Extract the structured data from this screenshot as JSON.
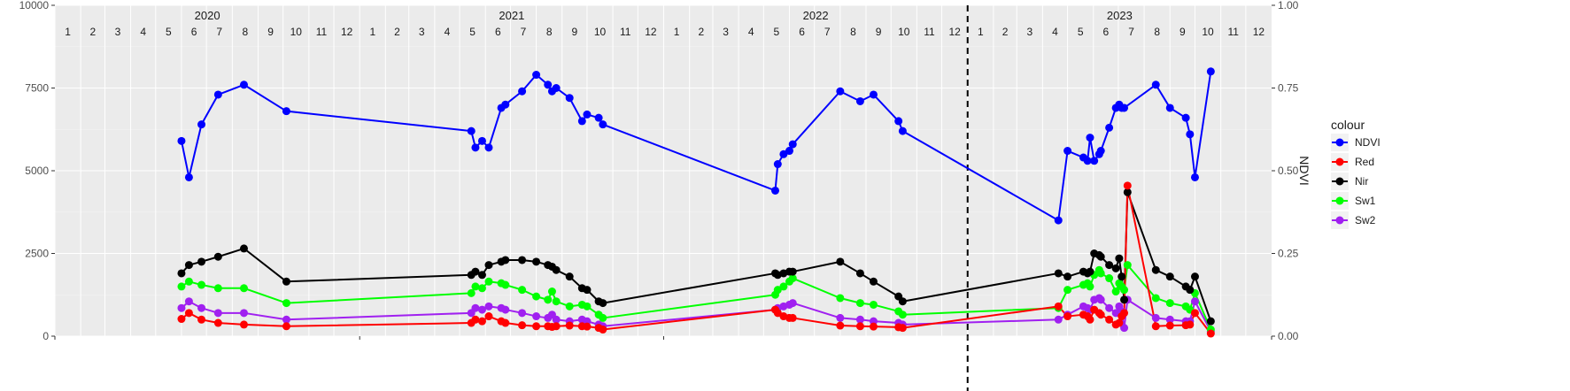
{
  "chart_data": {
    "type": "line",
    "x_range": [
      "2020-01-01",
      "2024-01-01"
    ],
    "ylim_left": [
      0,
      10000
    ],
    "ylim_right": [
      0,
      1.0
    ],
    "left_ticks": [
      0,
      2500,
      5000,
      7500,
      10000
    ],
    "left_tick_labels": [
      "0",
      "2500",
      "5000",
      "7500",
      "10000"
    ],
    "right_ticks": [
      0,
      0.25,
      0.5,
      0.75,
      1.0
    ],
    "right_tick_labels": [
      "0.00",
      "0.25",
      "0.50",
      "0.75",
      "1.00"
    ],
    "right_ylabel": "NDVI",
    "years": [
      "2020",
      "2021",
      "2022",
      "2023"
    ],
    "month_labels": [
      "1",
      "2",
      "3",
      "4",
      "5",
      "6",
      "7",
      "8",
      "9",
      "10",
      "11",
      "12"
    ],
    "vline_date": "2023-01-01",
    "vline_style": "dashed",
    "grid": true,
    "legend": {
      "title": "colour",
      "position": "right",
      "entries": [
        "NDVI",
        "Red",
        "Nir",
        "Sw1",
        "Sw2"
      ]
    },
    "series": [
      {
        "name": "NDVI",
        "color": "#0000ff",
        "axis": "right",
        "points": [
          [
            "2020-06-01",
            0.59
          ],
          [
            "2020-06-10",
            0.48
          ],
          [
            "2020-06-25",
            0.64
          ],
          [
            "2020-07-15",
            0.73
          ],
          [
            "2020-08-15",
            0.76
          ],
          [
            "2020-10-05",
            0.68
          ],
          [
            "2021-05-15",
            0.62
          ],
          [
            "2021-05-20",
            0.57
          ],
          [
            "2021-05-28",
            0.59
          ],
          [
            "2021-06-05",
            0.57
          ],
          [
            "2021-06-20",
            0.69
          ],
          [
            "2021-06-25",
            0.7
          ],
          [
            "2021-07-15",
            0.74
          ],
          [
            "2021-08-01",
            0.79
          ],
          [
            "2021-08-15",
            0.76
          ],
          [
            "2021-08-20",
            0.74
          ],
          [
            "2021-08-25",
            0.75
          ],
          [
            "2021-09-10",
            0.72
          ],
          [
            "2021-09-25",
            0.65
          ],
          [
            "2021-10-01",
            0.67
          ],
          [
            "2021-10-15",
            0.66
          ],
          [
            "2021-10-20",
            0.64
          ],
          [
            "2022-05-15",
            0.44
          ],
          [
            "2022-05-18",
            0.52
          ],
          [
            "2022-05-25",
            0.55
          ],
          [
            "2022-06-01",
            0.56
          ],
          [
            "2022-06-05",
            0.58
          ],
          [
            "2022-08-01",
            0.74
          ],
          [
            "2022-08-25",
            0.71
          ],
          [
            "2022-09-10",
            0.73
          ],
          [
            "2022-10-10",
            0.65
          ],
          [
            "2022-10-15",
            0.62
          ],
          [
            "2023-04-20",
            0.35
          ],
          [
            "2023-05-01",
            0.56
          ],
          [
            "2023-05-20",
            0.54
          ],
          [
            "2023-05-25",
            0.53
          ],
          [
            "2023-05-28",
            0.6
          ],
          [
            "2023-06-02",
            0.53
          ],
          [
            "2023-06-08",
            0.55
          ],
          [
            "2023-06-10",
            0.56
          ],
          [
            "2023-06-20",
            0.63
          ],
          [
            "2023-06-28",
            0.69
          ],
          [
            "2023-07-02",
            0.7
          ],
          [
            "2023-07-05",
            0.69
          ],
          [
            "2023-07-08",
            0.69
          ],
          [
            "2023-08-15",
            0.76
          ],
          [
            "2023-09-01",
            0.69
          ],
          [
            "2023-09-20",
            0.66
          ],
          [
            "2023-09-25",
            0.61
          ],
          [
            "2023-10-01",
            0.48
          ],
          [
            "2023-10-20",
            0.8
          ]
        ]
      },
      {
        "name": "Red",
        "color": "#ff0000",
        "axis": "left",
        "points": [
          [
            "2020-06-01",
            520
          ],
          [
            "2020-06-10",
            700
          ],
          [
            "2020-06-25",
            500
          ],
          [
            "2020-07-15",
            400
          ],
          [
            "2020-08-15",
            350
          ],
          [
            "2020-10-05",
            300
          ],
          [
            "2021-05-15",
            400
          ],
          [
            "2021-05-20",
            500
          ],
          [
            "2021-05-28",
            450
          ],
          [
            "2021-06-05",
            600
          ],
          [
            "2021-06-20",
            450
          ],
          [
            "2021-06-25",
            400
          ],
          [
            "2021-07-15",
            330
          ],
          [
            "2021-08-01",
            300
          ],
          [
            "2021-08-15",
            300
          ],
          [
            "2021-08-20",
            280
          ],
          [
            "2021-08-25",
            300
          ],
          [
            "2021-09-10",
            320
          ],
          [
            "2021-09-25",
            300
          ],
          [
            "2021-10-01",
            290
          ],
          [
            "2021-10-15",
            250
          ],
          [
            "2021-10-20",
            200
          ],
          [
            "2022-05-15",
            800
          ],
          [
            "2022-05-18",
            700
          ],
          [
            "2022-05-25",
            600
          ],
          [
            "2022-06-01",
            550
          ],
          [
            "2022-06-05",
            550
          ],
          [
            "2022-08-01",
            320
          ],
          [
            "2022-08-25",
            300
          ],
          [
            "2022-09-10",
            290
          ],
          [
            "2022-10-10",
            270
          ],
          [
            "2022-10-15",
            250
          ],
          [
            "2023-04-20",
            900
          ],
          [
            "2023-05-01",
            600
          ],
          [
            "2023-05-20",
            650
          ],
          [
            "2023-05-25",
            600
          ],
          [
            "2023-05-28",
            500
          ],
          [
            "2023-06-02",
            800
          ],
          [
            "2023-06-08",
            700
          ],
          [
            "2023-06-10",
            650
          ],
          [
            "2023-06-20",
            500
          ],
          [
            "2023-06-28",
            350
          ],
          [
            "2023-07-02",
            400
          ],
          [
            "2023-07-05",
            600
          ],
          [
            "2023-07-08",
            700
          ],
          [
            "2023-07-12",
            4550
          ],
          [
            "2023-08-15",
            300
          ],
          [
            "2023-09-01",
            320
          ],
          [
            "2023-09-20",
            330
          ],
          [
            "2023-09-25",
            350
          ],
          [
            "2023-10-01",
            700
          ],
          [
            "2023-10-20",
            80
          ]
        ]
      },
      {
        "name": "Nir",
        "color": "#000000",
        "axis": "left",
        "points": [
          [
            "2020-06-01",
            1900
          ],
          [
            "2020-06-10",
            2150
          ],
          [
            "2020-06-25",
            2250
          ],
          [
            "2020-07-15",
            2400
          ],
          [
            "2020-08-15",
            2650
          ],
          [
            "2020-10-05",
            1650
          ],
          [
            "2021-05-15",
            1850
          ],
          [
            "2021-05-20",
            1950
          ],
          [
            "2021-05-28",
            1850
          ],
          [
            "2021-06-05",
            2150
          ],
          [
            "2021-06-20",
            2250
          ],
          [
            "2021-06-25",
            2300
          ],
          [
            "2021-07-15",
            2300
          ],
          [
            "2021-08-01",
            2250
          ],
          [
            "2021-08-15",
            2150
          ],
          [
            "2021-08-20",
            2100
          ],
          [
            "2021-08-25",
            2000
          ],
          [
            "2021-09-10",
            1800
          ],
          [
            "2021-09-25",
            1450
          ],
          [
            "2021-10-01",
            1400
          ],
          [
            "2021-10-15",
            1050
          ],
          [
            "2021-10-20",
            1000
          ],
          [
            "2022-05-15",
            1900
          ],
          [
            "2022-05-18",
            1850
          ],
          [
            "2022-05-25",
            1900
          ],
          [
            "2022-06-01",
            1950
          ],
          [
            "2022-06-05",
            1950
          ],
          [
            "2022-08-01",
            2250
          ],
          [
            "2022-08-25",
            1900
          ],
          [
            "2022-09-10",
            1650
          ],
          [
            "2022-10-10",
            1200
          ],
          [
            "2022-10-15",
            1050
          ],
          [
            "2023-04-20",
            1900
          ],
          [
            "2023-05-01",
            1800
          ],
          [
            "2023-05-20",
            1950
          ],
          [
            "2023-05-25",
            1900
          ],
          [
            "2023-05-28",
            1950
          ],
          [
            "2023-06-02",
            2500
          ],
          [
            "2023-06-08",
            2450
          ],
          [
            "2023-06-10",
            2400
          ],
          [
            "2023-06-20",
            2150
          ],
          [
            "2023-06-28",
            2050
          ],
          [
            "2023-07-02",
            2350
          ],
          [
            "2023-07-05",
            1800
          ],
          [
            "2023-07-08",
            1100
          ],
          [
            "2023-07-12",
            4350
          ],
          [
            "2023-08-15",
            2000
          ],
          [
            "2023-09-01",
            1800
          ],
          [
            "2023-09-20",
            1500
          ],
          [
            "2023-09-25",
            1400
          ],
          [
            "2023-10-01",
            1800
          ],
          [
            "2023-10-20",
            450
          ]
        ]
      },
      {
        "name": "Sw1",
        "color": "#00ff00",
        "axis": "left",
        "points": [
          [
            "2020-06-01",
            1500
          ],
          [
            "2020-06-10",
            1650
          ],
          [
            "2020-06-25",
            1550
          ],
          [
            "2020-07-15",
            1450
          ],
          [
            "2020-08-15",
            1450
          ],
          [
            "2020-10-05",
            1000
          ],
          [
            "2021-05-15",
            1300
          ],
          [
            "2021-05-20",
            1500
          ],
          [
            "2021-05-28",
            1450
          ],
          [
            "2021-06-05",
            1650
          ],
          [
            "2021-06-20",
            1600
          ],
          [
            "2021-06-25",
            1550
          ],
          [
            "2021-07-15",
            1400
          ],
          [
            "2021-08-01",
            1200
          ],
          [
            "2021-08-15",
            1100
          ],
          [
            "2021-08-20",
            1350
          ],
          [
            "2021-08-25",
            1050
          ],
          [
            "2021-09-10",
            900
          ],
          [
            "2021-09-25",
            950
          ],
          [
            "2021-10-01",
            900
          ],
          [
            "2021-10-15",
            650
          ],
          [
            "2021-10-20",
            550
          ],
          [
            "2022-05-15",
            1250
          ],
          [
            "2022-05-18",
            1400
          ],
          [
            "2022-05-25",
            1500
          ],
          [
            "2022-06-01",
            1650
          ],
          [
            "2022-06-05",
            1750
          ],
          [
            "2022-08-01",
            1150
          ],
          [
            "2022-08-25",
            1000
          ],
          [
            "2022-09-10",
            950
          ],
          [
            "2022-10-10",
            750
          ],
          [
            "2022-10-15",
            650
          ],
          [
            "2023-04-20",
            850
          ],
          [
            "2023-05-01",
            1400
          ],
          [
            "2023-05-20",
            1550
          ],
          [
            "2023-05-25",
            1600
          ],
          [
            "2023-05-28",
            1500
          ],
          [
            "2023-06-02",
            1850
          ],
          [
            "2023-06-08",
            2000
          ],
          [
            "2023-06-10",
            1900
          ],
          [
            "2023-06-20",
            1750
          ],
          [
            "2023-06-28",
            1350
          ],
          [
            "2023-07-02",
            1600
          ],
          [
            "2023-07-05",
            1500
          ],
          [
            "2023-07-08",
            1400
          ],
          [
            "2023-07-12",
            2150
          ],
          [
            "2023-08-15",
            1150
          ],
          [
            "2023-09-01",
            1000
          ],
          [
            "2023-09-20",
            900
          ],
          [
            "2023-09-25",
            800
          ],
          [
            "2023-10-01",
            1300
          ],
          [
            "2023-10-20",
            200
          ]
        ]
      },
      {
        "name": "Sw2",
        "color": "#a020f0",
        "axis": "left",
        "points": [
          [
            "2020-06-01",
            850
          ],
          [
            "2020-06-10",
            1050
          ],
          [
            "2020-06-25",
            850
          ],
          [
            "2020-07-15",
            700
          ],
          [
            "2020-08-15",
            700
          ],
          [
            "2020-10-05",
            500
          ],
          [
            "2021-05-15",
            700
          ],
          [
            "2021-05-20",
            850
          ],
          [
            "2021-05-28",
            800
          ],
          [
            "2021-06-05",
            900
          ],
          [
            "2021-06-20",
            850
          ],
          [
            "2021-06-25",
            800
          ],
          [
            "2021-07-15",
            700
          ],
          [
            "2021-08-01",
            600
          ],
          [
            "2021-08-15",
            550
          ],
          [
            "2021-08-20",
            650
          ],
          [
            "2021-08-25",
            500
          ],
          [
            "2021-09-10",
            450
          ],
          [
            "2021-09-25",
            500
          ],
          [
            "2021-10-01",
            450
          ],
          [
            "2021-10-15",
            350
          ],
          [
            "2021-10-20",
            300
          ],
          [
            "2022-05-15",
            800
          ],
          [
            "2022-05-18",
            850
          ],
          [
            "2022-05-25",
            900
          ],
          [
            "2022-06-01",
            950
          ],
          [
            "2022-06-05",
            1000
          ],
          [
            "2022-08-01",
            550
          ],
          [
            "2022-08-25",
            500
          ],
          [
            "2022-09-10",
            450
          ],
          [
            "2022-10-10",
            400
          ],
          [
            "2022-10-15",
            350
          ],
          [
            "2023-04-20",
            500
          ],
          [
            "2023-05-01",
            650
          ],
          [
            "2023-05-20",
            900
          ],
          [
            "2023-05-25",
            850
          ],
          [
            "2023-05-28",
            800
          ],
          [
            "2023-06-02",
            1100
          ],
          [
            "2023-06-08",
            1150
          ],
          [
            "2023-06-10",
            1100
          ],
          [
            "2023-06-20",
            850
          ],
          [
            "2023-06-28",
            700
          ],
          [
            "2023-07-02",
            900
          ],
          [
            "2023-07-05",
            750
          ],
          [
            "2023-07-08",
            250
          ],
          [
            "2023-07-12",
            1100
          ],
          [
            "2023-08-15",
            550
          ],
          [
            "2023-09-01",
            500
          ],
          [
            "2023-09-20",
            450
          ],
          [
            "2023-09-25",
            450
          ],
          [
            "2023-10-01",
            1050
          ],
          [
            "2023-10-20",
            150
          ]
        ]
      }
    ]
  }
}
